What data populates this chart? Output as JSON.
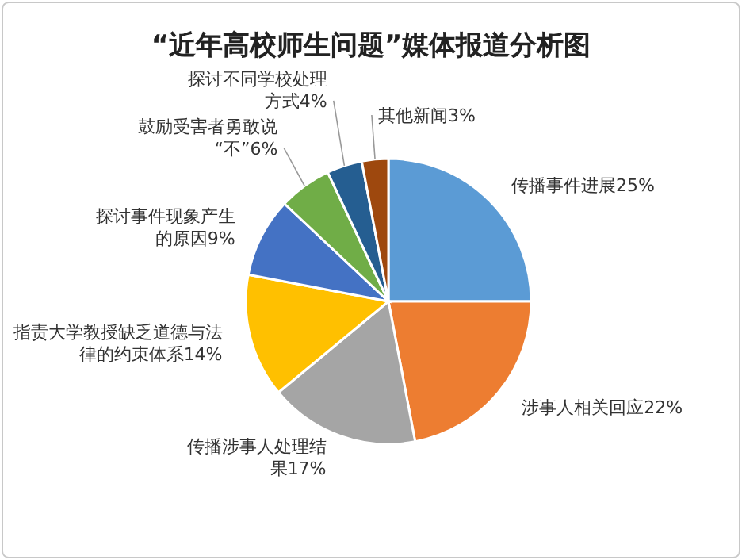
{
  "chart_data": {
    "type": "pie",
    "title": "“近年高校师生问题”媒体报道分析图",
    "categories": [
      "传播事件进展",
      "涉事人相关回应",
      "传播涉事人处理结果",
      "指责大学教授缺乏道德与法律的约束体系",
      "探讨事件现象产生的原因",
      "鼓励受害者勇敢说“不”",
      "探讨不同学校处理方式",
      "其他新闻"
    ],
    "values": [
      25,
      22,
      17,
      14,
      9,
      6,
      4,
      3
    ],
    "value_labels": [
      "25%",
      "22%",
      "17%",
      "14%",
      "9%",
      "6%",
      "4%",
      "3%"
    ],
    "colors": [
      "#5b9bd5",
      "#ed7d31",
      "#a5a5a5",
      "#ffc000",
      "#4472c4",
      "#70ad47",
      "#255e91",
      "#9e480e"
    ]
  }
}
